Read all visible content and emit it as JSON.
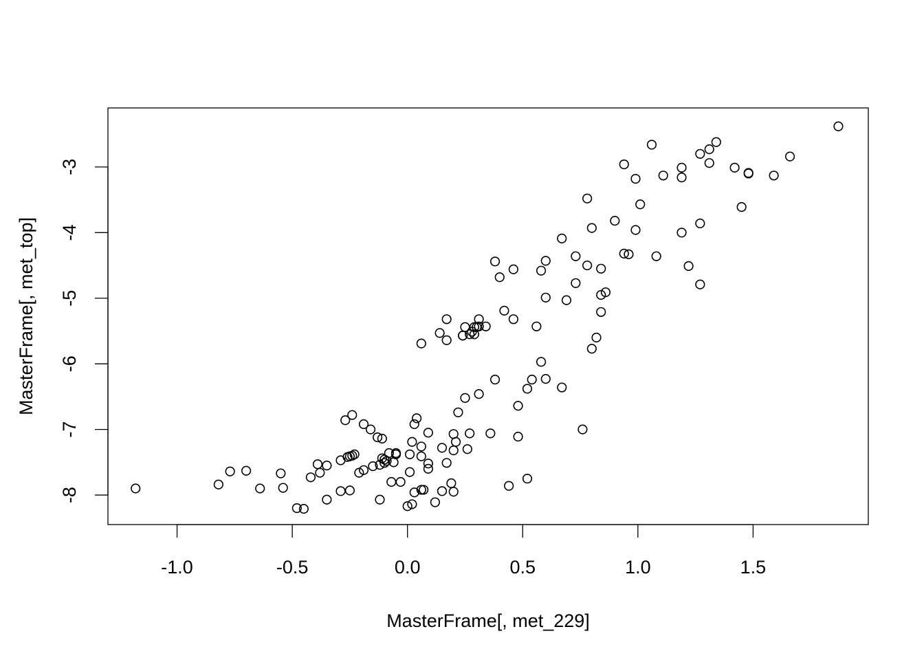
{
  "chart_data": {
    "type": "scatter",
    "title": "",
    "xlabel": "MasterFrame[, met_229]",
    "ylabel": "MasterFrame[, met_top]",
    "xlim": [
      -1.3,
      2.0
    ],
    "ylim": [
      -8.45,
      -2.1
    ],
    "xticks": [
      -1.0,
      -0.5,
      0.0,
      0.5,
      1.0,
      1.5
    ],
    "xtick_labels": [
      "-1.0",
      "-0.5",
      "0.0",
      "0.5",
      "1.0",
      "1.5"
    ],
    "yticks": [
      -8,
      -7,
      -6,
      -5,
      -4,
      -3
    ],
    "ytick_labels": [
      "-8",
      "-7",
      "-6",
      "-5",
      "-4",
      "-3"
    ],
    "grid": false,
    "marker": "open-circle",
    "marker_color": "#000000",
    "points": [
      [
        -1.18,
        -7.9
      ],
      [
        -0.82,
        -7.84
      ],
      [
        -0.77,
        -7.64
      ],
      [
        -0.7,
        -7.63
      ],
      [
        -0.64,
        -7.9
      ],
      [
        -0.55,
        -7.67
      ],
      [
        -0.54,
        -7.89
      ],
      [
        -0.48,
        -8.2
      ],
      [
        -0.45,
        -8.21
      ],
      [
        -0.42,
        -7.73
      ],
      [
        -0.39,
        -7.53
      ],
      [
        -0.38,
        -7.66
      ],
      [
        -0.35,
        -8.07
      ],
      [
        -0.35,
        -7.55
      ],
      [
        -0.29,
        -7.47
      ],
      [
        -0.29,
        -7.94
      ],
      [
        -0.27,
        -6.86
      ],
      [
        -0.26,
        -7.42
      ],
      [
        -0.25,
        -7.93
      ],
      [
        -0.25,
        -7.41
      ],
      [
        -0.24,
        -6.78
      ],
      [
        -0.24,
        -7.4
      ],
      [
        -0.23,
        -7.38
      ],
      [
        -0.21,
        -7.66
      ],
      [
        -0.19,
        -7.62
      ],
      [
        -0.19,
        -6.92
      ],
      [
        -0.16,
        -7.0
      ],
      [
        -0.15,
        -7.56
      ],
      [
        -0.13,
        -7.12
      ],
      [
        -0.12,
        -8.07
      ],
      [
        -0.12,
        -7.54
      ],
      [
        -0.11,
        -7.44
      ],
      [
        -0.11,
        -7.14
      ],
      [
        -0.1,
        -7.46
      ],
      [
        -0.1,
        -7.51
      ],
      [
        -0.09,
        -7.48
      ],
      [
        -0.08,
        -7.36
      ],
      [
        -0.07,
        -7.8
      ],
      [
        -0.06,
        -7.5
      ],
      [
        -0.05,
        -7.38
      ],
      [
        -0.05,
        -7.36
      ],
      [
        -0.03,
        -7.8
      ],
      [
        0.0,
        -8.17
      ],
      [
        0.01,
        -7.65
      ],
      [
        0.01,
        -7.38
      ],
      [
        0.02,
        -7.19
      ],
      [
        0.02,
        -8.14
      ],
      [
        0.03,
        -7.96
      ],
      [
        0.03,
        -6.92
      ],
      [
        0.04,
        -6.83
      ],
      [
        0.06,
        -5.69
      ],
      [
        0.06,
        -7.41
      ],
      [
        0.06,
        -7.26
      ],
      [
        0.06,
        -7.92
      ],
      [
        0.07,
        -7.92
      ],
      [
        0.09,
        -7.05
      ],
      [
        0.09,
        -7.52
      ],
      [
        0.09,
        -7.6
      ],
      [
        0.12,
        -8.11
      ],
      [
        0.14,
        -5.53
      ],
      [
        0.15,
        -7.28
      ],
      [
        0.15,
        -7.94
      ],
      [
        0.17,
        -5.64
      ],
      [
        0.17,
        -5.32
      ],
      [
        0.17,
        -7.51
      ],
      [
        0.19,
        -7.82
      ],
      [
        0.2,
        -7.07
      ],
      [
        0.2,
        -7.95
      ],
      [
        0.2,
        -7.32
      ],
      [
        0.21,
        -7.19
      ],
      [
        0.22,
        -6.74
      ],
      [
        0.24,
        -5.57
      ],
      [
        0.24,
        -5.57
      ],
      [
        0.25,
        -5.44
      ],
      [
        0.25,
        -6.52
      ],
      [
        0.26,
        -7.3
      ],
      [
        0.27,
        -7.06
      ],
      [
        0.27,
        -5.55
      ],
      [
        0.28,
        -5.51
      ],
      [
        0.29,
        -5.55
      ],
      [
        0.29,
        -5.44
      ],
      [
        0.3,
        -5.44
      ],
      [
        0.31,
        -6.46
      ],
      [
        0.31,
        -5.32
      ],
      [
        0.31,
        -5.43
      ],
      [
        0.34,
        -5.43
      ],
      [
        0.36,
        -7.06
      ],
      [
        0.38,
        -4.44
      ],
      [
        0.38,
        -6.24
      ],
      [
        0.4,
        -4.68
      ],
      [
        0.42,
        -5.19
      ],
      [
        0.44,
        -7.86
      ],
      [
        0.46,
        -4.56
      ],
      [
        0.46,
        -5.32
      ],
      [
        0.48,
        -6.64
      ],
      [
        0.48,
        -7.11
      ],
      [
        0.52,
        -7.75
      ],
      [
        0.52,
        -6.38
      ],
      [
        0.54,
        -6.24
      ],
      [
        0.56,
        -5.43
      ],
      [
        0.58,
        -4.58
      ],
      [
        0.58,
        -5.97
      ],
      [
        0.6,
        -4.43
      ],
      [
        0.6,
        -4.99
      ],
      [
        0.6,
        -6.23
      ],
      [
        0.67,
        -4.09
      ],
      [
        0.67,
        -6.36
      ],
      [
        0.69,
        -5.03
      ],
      [
        0.73,
        -4.36
      ],
      [
        0.73,
        -4.77
      ],
      [
        0.76,
        -7.0
      ],
      [
        0.78,
        -3.48
      ],
      [
        0.78,
        -4.5
      ],
      [
        0.8,
        -3.93
      ],
      [
        0.8,
        -5.77
      ],
      [
        0.82,
        -5.6
      ],
      [
        0.84,
        -4.55
      ],
      [
        0.84,
        -4.95
      ],
      [
        0.84,
        -5.21
      ],
      [
        0.86,
        -4.91
      ],
      [
        0.9,
        -3.82
      ],
      [
        0.94,
        -4.32
      ],
      [
        0.94,
        -2.96
      ],
      [
        0.96,
        -4.33
      ],
      [
        0.99,
        -3.18
      ],
      [
        0.99,
        -3.96
      ],
      [
        1.01,
        -3.57
      ],
      [
        1.06,
        -2.66
      ],
      [
        1.08,
        -4.36
      ],
      [
        1.11,
        -3.13
      ],
      [
        1.19,
        -3.01
      ],
      [
        1.19,
        -3.16
      ],
      [
        1.19,
        -4.0
      ],
      [
        1.22,
        -4.51
      ],
      [
        1.27,
        -2.8
      ],
      [
        1.27,
        -3.86
      ],
      [
        1.27,
        -4.79
      ],
      [
        1.31,
        -2.94
      ],
      [
        1.31,
        -2.73
      ],
      [
        1.34,
        -2.62
      ],
      [
        1.42,
        -3.01
      ],
      [
        1.45,
        -3.61
      ],
      [
        1.48,
        -3.09
      ],
      [
        1.48,
        -3.1
      ],
      [
        1.59,
        -3.13
      ],
      [
        1.66,
        -2.84
      ],
      [
        1.87,
        -2.38
      ]
    ]
  }
}
